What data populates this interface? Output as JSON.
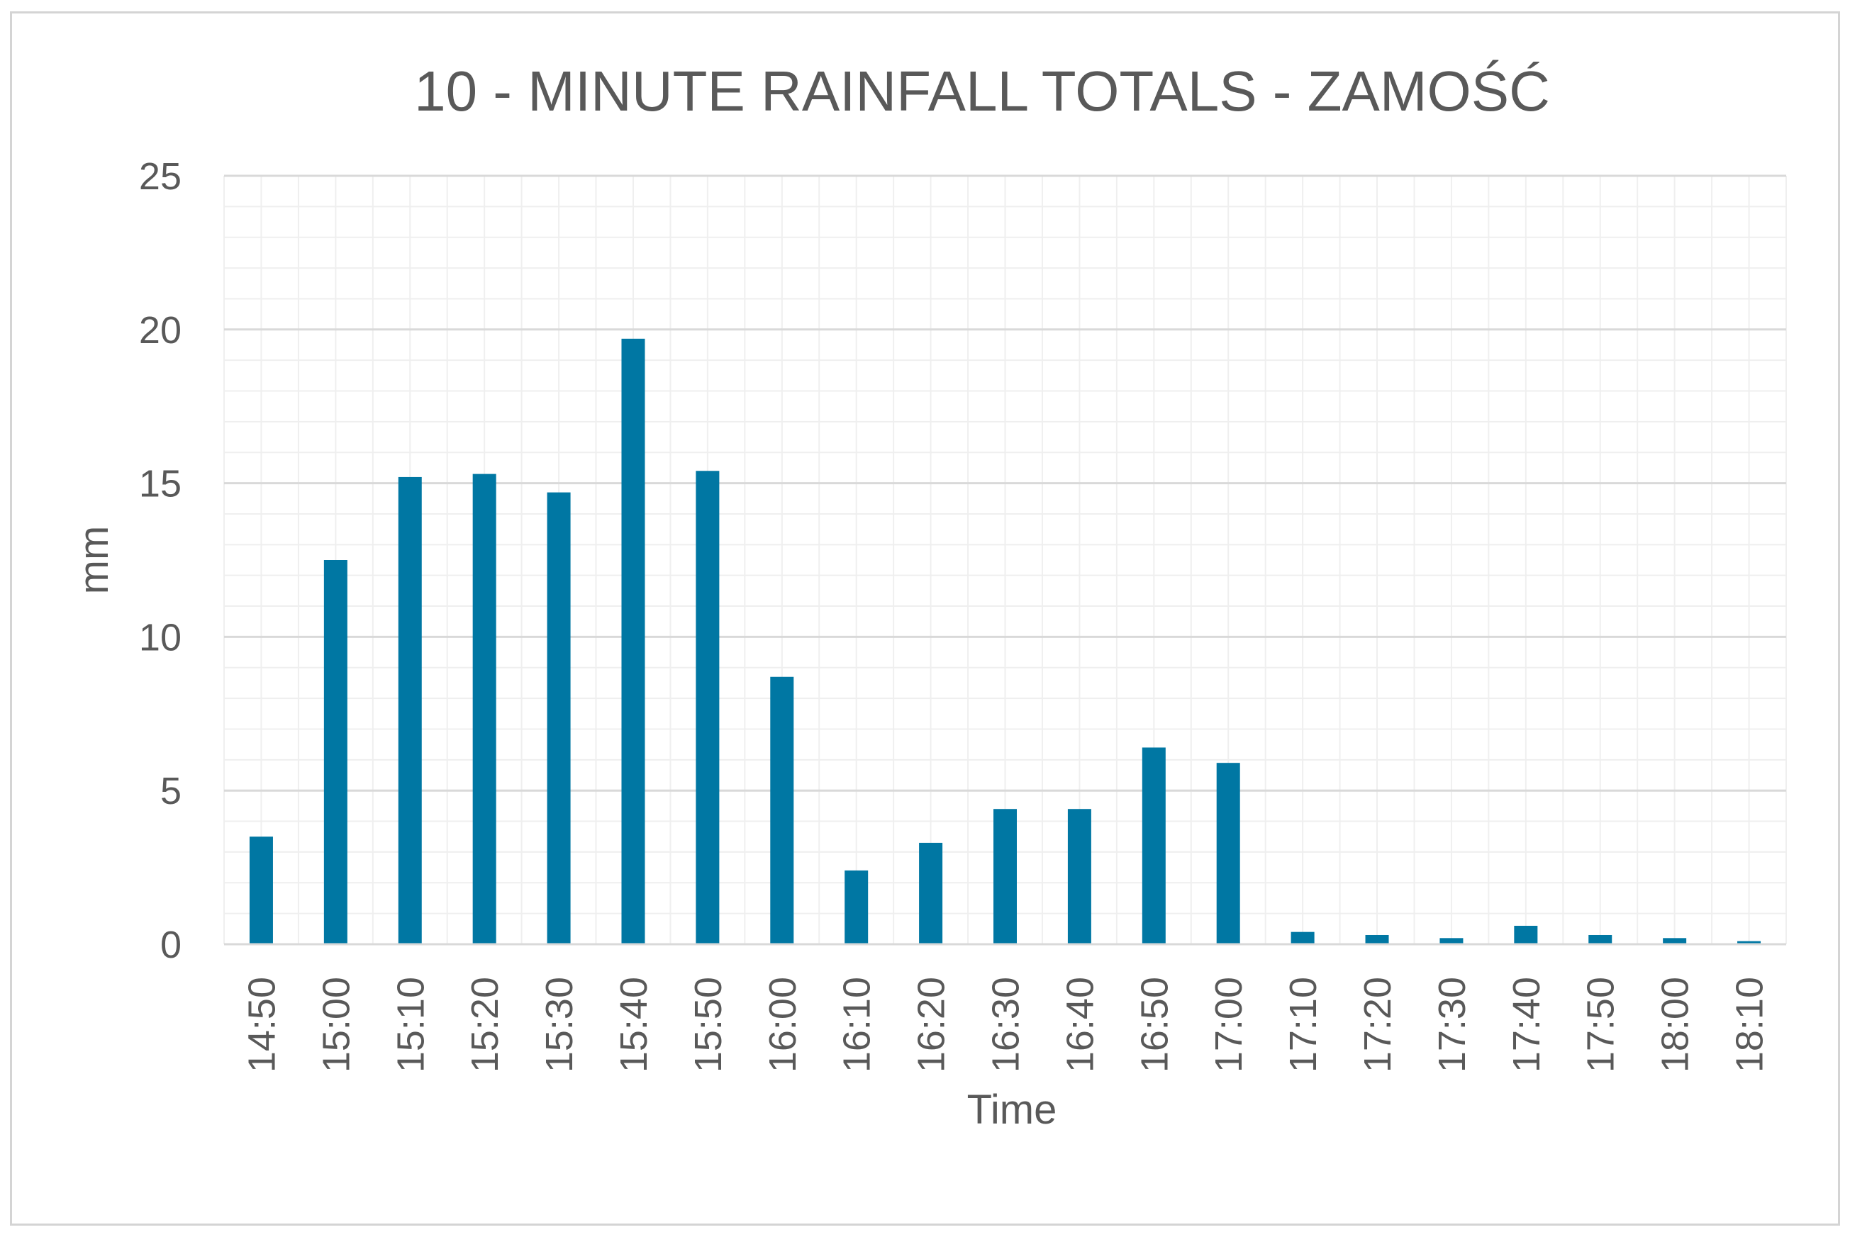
{
  "chart_data": {
    "type": "bar",
    "title": "10 - MINUTE RAINFALL TOTALS - ZAMOŚĆ",
    "xlabel": "Time",
    "ylabel": "mm",
    "ylim": [
      0,
      25
    ],
    "yticks": [
      0,
      5,
      10,
      15,
      20,
      25
    ],
    "minor_y_step": 1,
    "grid": true,
    "bar_color": "#0077a3",
    "major_grid_color": "#d9d9d9",
    "minor_grid_color": "#efefef",
    "categories": [
      "14:50",
      "15:00",
      "15:10",
      "15:20",
      "15:30",
      "15:40",
      "15:50",
      "16:00",
      "16:10",
      "16:20",
      "16:30",
      "16:40",
      "16:50",
      "17:00",
      "17:10",
      "17:20",
      "17:30",
      "17:40",
      "17:50",
      "18:00",
      "18:10"
    ],
    "values": [
      3.5,
      12.5,
      15.2,
      15.3,
      14.7,
      19.7,
      15.4,
      8.7,
      2.4,
      3.3,
      4.4,
      4.4,
      6.4,
      5.9,
      0.4,
      0.3,
      0.2,
      0.6,
      0.3,
      0.2,
      0.1
    ]
  }
}
